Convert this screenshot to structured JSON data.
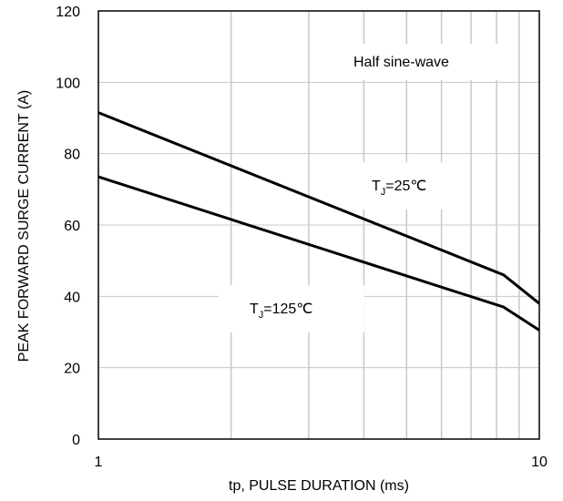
{
  "chart_data": {
    "type": "line",
    "title": "",
    "xlabel": "tp, PULSE DURATION (ms)",
    "ylabel": "PEAK FORWARD SURGE CURRENT (A)",
    "x_scale": "log",
    "xlim": [
      1,
      10
    ],
    "ylim": [
      0,
      120
    ],
    "x_ticks": [
      1,
      10
    ],
    "x_tick_labels": [
      "1",
      "10"
    ],
    "y_ticks": [
      0,
      20,
      40,
      60,
      80,
      100,
      120
    ],
    "y_tick_labels": [
      "0",
      "20",
      "40",
      "60",
      "80",
      "100",
      "120"
    ],
    "grid": true,
    "legend": "none",
    "series": [
      {
        "name": "TJ=25°C",
        "x": [
          1,
          8.3,
          10
        ],
        "y": [
          91.5,
          46,
          38
        ]
      },
      {
        "name": "TJ=125°C",
        "x": [
          1,
          8.3,
          10
        ],
        "y": [
          73.5,
          37,
          30.5
        ]
      }
    ],
    "annotations": {
      "waveform": "Half sine-wave",
      "tj25": {
        "prefix": "T",
        "sub": "J",
        "suffix": "=25℃"
      },
      "tj125": {
        "prefix": "T",
        "sub": "J",
        "suffix": "=125℃"
      }
    },
    "line_color": "#000000",
    "grid_color": "#c8c8c8"
  }
}
